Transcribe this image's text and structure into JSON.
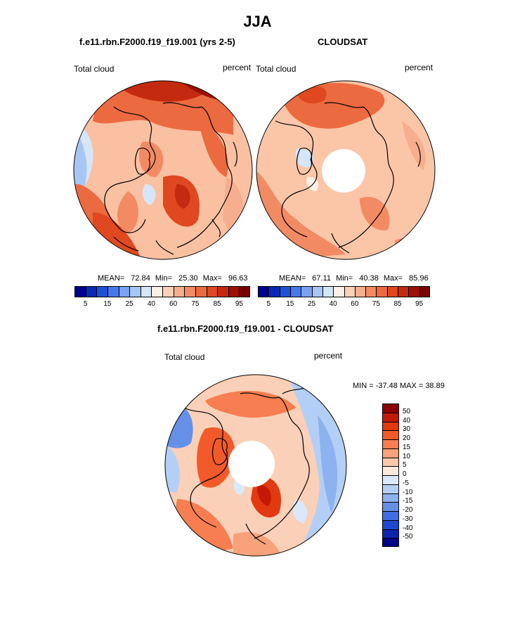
{
  "title": "JJA",
  "panels": {
    "model": {
      "title": "f.e11.rbn.F2000.f19_f19.001 (yrs 2-5)",
      "variable": "Total cloud",
      "units": "percent",
      "stats": {
        "mean_label": "MEAN=",
        "mean": "72.84",
        "min_label": "Min=",
        "min": "25.30",
        "max_label": "Max=",
        "max": "96.63"
      }
    },
    "obs": {
      "title": "CLOUDSAT",
      "variable": "Total cloud",
      "units": "percent",
      "stats": {
        "mean_label": "MEAN=",
        "mean": "67.11",
        "min_label": "Min=",
        "min": "40.38",
        "max_label": "Max=",
        "max": "85.96"
      }
    },
    "diff": {
      "title": "f.e11.rbn.F2000.f19_f19.001 - CLOUDSAT",
      "variable": "Total cloud",
      "units": "percent",
      "minmax": "MIN = -37.48 MAX =  38.89"
    }
  },
  "colorbar_abs": {
    "colors": [
      "#00008c",
      "#0a2ab4",
      "#2050d6",
      "#4a78e8",
      "#7aa2f0",
      "#a8c6f5",
      "#d6e6fa",
      "#fff0e6",
      "#fbd0b8",
      "#f7ae8e",
      "#f28b64",
      "#ec6a40",
      "#df4820",
      "#c42a10",
      "#9c1005",
      "#7a0000"
    ],
    "ticks": [
      "5",
      "15",
      "25",
      "40",
      "60",
      "75",
      "85",
      "95"
    ]
  },
  "colorbar_diff": {
    "colors": [
      "#8c0000",
      "#c21a05",
      "#e23a10",
      "#f25a2a",
      "#f67e50",
      "#f8a27c",
      "#fbc8aa",
      "#fdeadc",
      "#dbe8fb",
      "#b4cff6",
      "#8cb2f0",
      "#6490e8",
      "#3e6ee0",
      "#1f48d2",
      "#0c24b0",
      "#000088"
    ],
    "ticks": [
      "50",
      "40",
      "30",
      "20",
      "15",
      "10",
      "5",
      "0",
      "-5",
      "-10",
      "-15",
      "-20",
      "-30",
      "-40",
      "-50"
    ]
  },
  "chart_data": [
    {
      "type": "heatmap",
      "projection": "polar stereographic (north)",
      "title": "f.e11.rbn.F2000.f19_f19.001 (yrs 2-5)",
      "variable": "Total cloud",
      "units": "percent",
      "mean": 72.84,
      "min": 25.3,
      "max": 96.63,
      "levels": [
        5,
        10,
        15,
        20,
        25,
        30,
        40,
        50,
        60,
        65,
        75,
        80,
        85,
        90,
        95
      ]
    },
    {
      "type": "heatmap",
      "projection": "polar stereographic (north)",
      "title": "CLOUDSAT",
      "variable": "Total cloud",
      "units": "percent",
      "mean": 67.11,
      "min": 40.38,
      "max": 85.96,
      "levels": [
        5,
        10,
        15,
        20,
        25,
        30,
        40,
        50,
        60,
        65,
        75,
        80,
        85,
        90,
        95
      ]
    },
    {
      "type": "heatmap",
      "projection": "polar stereographic (north)",
      "title": "f.e11.rbn.F2000.f19_f19.001 - CLOUDSAT",
      "variable": "Total cloud",
      "units": "percent",
      "min": -37.48,
      "max": 38.89,
      "levels": [
        50,
        40,
        30,
        20,
        15,
        10,
        5,
        0,
        -5,
        -10,
        -15,
        -20,
        -30,
        -40,
        -50
      ]
    }
  ]
}
